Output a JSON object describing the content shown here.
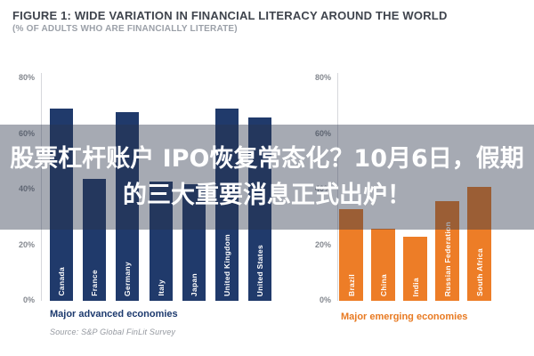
{
  "header": {
    "title": "FIGURE 1: WIDE VARIATION IN FINANCIAL LITERACY AROUND THE WORLD",
    "subtitle": "(% OF ADULTS WHO ARE FINANCIALLY LITERATE)"
  },
  "overlay": {
    "line1": "股票杠杆账户 IPO恢复常态化？10月6日，假期",
    "line2": "的三大重要消息正式出炉！"
  },
  "axis": {
    "ticks": [
      "80%",
      "60%",
      "40%",
      "20%",
      "0%"
    ],
    "max_percent": 80
  },
  "colors": {
    "advanced_bar": "#203a6b",
    "emerging_bar": "#ed7d27",
    "advanced_caption": "#1d3a6e",
    "emerging_caption": "#e87a22",
    "overlay_band": "rgba(42,53,74,0.42)"
  },
  "source_note": "Source: S&P Global FinLit Survey",
  "chart_data": [
    {
      "type": "bar",
      "title": "Major advanced economies",
      "categories": [
        "Canada",
        "France",
        "Germany",
        "Italy",
        "Japan",
        "United Kingdom",
        "United States"
      ],
      "values": [
        69,
        44,
        68,
        43,
        42,
        69,
        66
      ],
      "ylabel": "% of adults financially literate",
      "ylim": [
        0,
        80
      ],
      "grid": false,
      "bar_color": "#203a6b"
    },
    {
      "type": "bar",
      "title": "Major emerging economies",
      "categories": [
        "Brazil",
        "China",
        "India",
        "Russian Federation",
        "South Africa"
      ],
      "values": [
        33,
        26,
        23,
        36,
        41
      ],
      "ylabel": "% of adults financially literate",
      "ylim": [
        0,
        80
      ],
      "grid": false,
      "bar_color": "#ed7d27"
    }
  ]
}
